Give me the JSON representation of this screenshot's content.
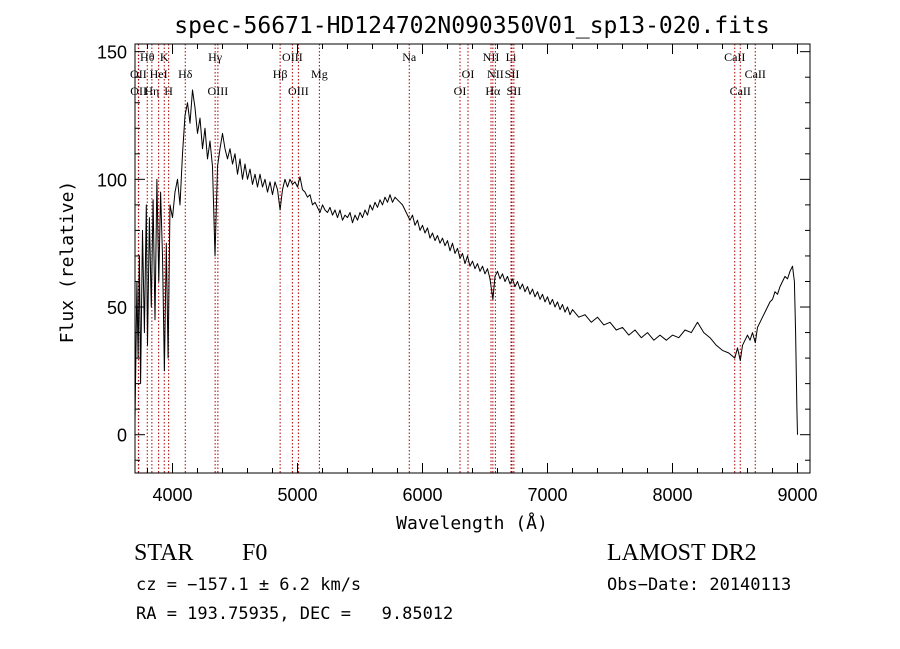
{
  "chart_data": {
    "type": "line",
    "title": "spec-56671-HD124702N090350V01_sp13-020.fits",
    "xlabel": "Wavelength (Å)",
    "ylabel": "Flux (relative)",
    "xlim": [
      3700,
      9100
    ],
    "ylim": [
      -15,
      153
    ],
    "x_ticks": [
      4000,
      5000,
      6000,
      7000,
      8000,
      9000
    ],
    "y_ticks": [
      0,
      50,
      100,
      150
    ],
    "grid": false,
    "series": [
      {
        "points": [
          [
            3700,
            5
          ],
          [
            3715,
            60
          ],
          [
            3725,
            30
          ],
          [
            3735,
            70
          ],
          [
            3745,
            20
          ],
          [
            3760,
            80
          ],
          [
            3775,
            40
          ],
          [
            3790,
            90
          ],
          [
            3800,
            35
          ],
          [
            3815,
            85
          ],
          [
            3830,
            50
          ],
          [
            3845,
            92
          ],
          [
            3860,
            45
          ],
          [
            3875,
            100
          ],
          [
            3890,
            60
          ],
          [
            3905,
            95
          ],
          [
            3920,
            70
          ],
          [
            3935,
            25
          ],
          [
            3950,
            75
          ],
          [
            3965,
            30
          ],
          [
            3980,
            90
          ],
          [
            4000,
            85
          ],
          [
            4020,
            95
          ],
          [
            4040,
            100
          ],
          [
            4060,
            90
          ],
          [
            4080,
            110
          ],
          [
            4100,
            125
          ],
          [
            4120,
            130
          ],
          [
            4140,
            122
          ],
          [
            4160,
            135
          ],
          [
            4180,
            128
          ],
          [
            4200,
            118
          ],
          [
            4220,
            124
          ],
          [
            4240,
            112
          ],
          [
            4260,
            120
          ],
          [
            4280,
            108
          ],
          [
            4300,
            115
          ],
          [
            4320,
            105
          ],
          [
            4340,
            70
          ],
          [
            4360,
            105
          ],
          [
            4380,
            112
          ],
          [
            4400,
            118
          ],
          [
            4420,
            112
          ],
          [
            4440,
            108
          ],
          [
            4460,
            112
          ],
          [
            4480,
            106
          ],
          [
            4500,
            110
          ],
          [
            4520,
            102
          ],
          [
            4540,
            108
          ],
          [
            4560,
            100
          ],
          [
            4580,
            106
          ],
          [
            4600,
            100
          ],
          [
            4620,
            104
          ],
          [
            4640,
            98
          ],
          [
            4660,
            102
          ],
          [
            4680,
            97
          ],
          [
            4700,
            102
          ],
          [
            4720,
            97
          ],
          [
            4740,
            100
          ],
          [
            4760,
            95
          ],
          [
            4780,
            99
          ],
          [
            4800,
            94
          ],
          [
            4820,
            99
          ],
          [
            4840,
            96
          ],
          [
            4861,
            88
          ],
          [
            4880,
            96
          ],
          [
            4900,
            100
          ],
          [
            4920,
            97
          ],
          [
            4940,
            100
          ],
          [
            4960,
            98
          ],
          [
            4980,
            99
          ],
          [
            5000,
            97
          ],
          [
            5020,
            101
          ],
          [
            5040,
            96
          ],
          [
            5060,
            95
          ],
          [
            5080,
            93
          ],
          [
            5100,
            94
          ],
          [
            5120,
            90
          ],
          [
            5140,
            91
          ],
          [
            5160,
            89
          ],
          [
            5180,
            87
          ],
          [
            5200,
            90
          ],
          [
            5220,
            88
          ],
          [
            5240,
            87
          ],
          [
            5260,
            89
          ],
          [
            5280,
            86
          ],
          [
            5300,
            88
          ],
          [
            5320,
            85
          ],
          [
            5340,
            88
          ],
          [
            5360,
            84
          ],
          [
            5380,
            86
          ],
          [
            5400,
            85
          ],
          [
            5420,
            87
          ],
          [
            5440,
            83
          ],
          [
            5460,
            86
          ],
          [
            5480,
            84
          ],
          [
            5500,
            87
          ],
          [
            5520,
            85
          ],
          [
            5540,
            88
          ],
          [
            5560,
            86
          ],
          [
            5580,
            90
          ],
          [
            5600,
            88
          ],
          [
            5620,
            91
          ],
          [
            5640,
            89
          ],
          [
            5660,
            92
          ],
          [
            5680,
            90
          ],
          [
            5700,
            93
          ],
          [
            5720,
            91
          ],
          [
            5740,
            94
          ],
          [
            5760,
            91
          ],
          [
            5780,
            93
          ],
          [
            5800,
            92
          ],
          [
            5820,
            91
          ],
          [
            5840,
            90
          ],
          [
            5860,
            88
          ],
          [
            5880,
            86
          ],
          [
            5900,
            84
          ],
          [
            5920,
            86
          ],
          [
            5940,
            82
          ],
          [
            5960,
            84
          ],
          [
            5980,
            80
          ],
          [
            6000,
            82
          ],
          [
            6020,
            79
          ],
          [
            6040,
            81
          ],
          [
            6060,
            77
          ],
          [
            6080,
            79
          ],
          [
            6100,
            76
          ],
          [
            6120,
            78
          ],
          [
            6140,
            75
          ],
          [
            6160,
            77
          ],
          [
            6180,
            74
          ],
          [
            6200,
            76
          ],
          [
            6220,
            72
          ],
          [
            6240,
            75
          ],
          [
            6260,
            71
          ],
          [
            6280,
            73
          ],
          [
            6300,
            69
          ],
          [
            6320,
            71
          ],
          [
            6340,
            67
          ],
          [
            6360,
            70
          ],
          [
            6380,
            66
          ],
          [
            6400,
            68
          ],
          [
            6420,
            65
          ],
          [
            6440,
            67
          ],
          [
            6460,
            64
          ],
          [
            6480,
            66
          ],
          [
            6500,
            63
          ],
          [
            6520,
            65
          ],
          [
            6540,
            61
          ],
          [
            6563,
            53
          ],
          [
            6580,
            62
          ],
          [
            6600,
            64
          ],
          [
            6620,
            61
          ],
          [
            6640,
            63
          ],
          [
            6660,
            60
          ],
          [
            6680,
            62
          ],
          [
            6700,
            59
          ],
          [
            6720,
            61
          ],
          [
            6740,
            58
          ],
          [
            6760,
            60
          ],
          [
            6780,
            57
          ],
          [
            6800,
            59
          ],
          [
            6820,
            56
          ],
          [
            6840,
            58
          ],
          [
            6860,
            55
          ],
          [
            6880,
            57
          ],
          [
            6900,
            54
          ],
          [
            6920,
            56
          ],
          [
            6940,
            53
          ],
          [
            6960,
            55
          ],
          [
            6980,
            52
          ],
          [
            7000,
            54
          ],
          [
            7020,
            51
          ],
          [
            7040,
            53
          ],
          [
            7060,
            50
          ],
          [
            7080,
            52
          ],
          [
            7100,
            49
          ],
          [
            7120,
            51
          ],
          [
            7140,
            48
          ],
          [
            7160,
            50
          ],
          [
            7180,
            47
          ],
          [
            7200,
            49
          ],
          [
            7250,
            46
          ],
          [
            7300,
            47
          ],
          [
            7350,
            44
          ],
          [
            7400,
            46
          ],
          [
            7450,
            43
          ],
          [
            7500,
            44
          ],
          [
            7550,
            41
          ],
          [
            7600,
            42
          ],
          [
            7650,
            39
          ],
          [
            7700,
            41
          ],
          [
            7750,
            38
          ],
          [
            7800,
            40
          ],
          [
            7850,
            37
          ],
          [
            7900,
            39
          ],
          [
            7950,
            37
          ],
          [
            8000,
            39
          ],
          [
            8050,
            38
          ],
          [
            8100,
            41
          ],
          [
            8150,
            40
          ],
          [
            8200,
            44
          ],
          [
            8250,
            40
          ],
          [
            8300,
            38
          ],
          [
            8350,
            35
          ],
          [
            8400,
            33
          ],
          [
            8450,
            32
          ],
          [
            8498,
            30
          ],
          [
            8520,
            34
          ],
          [
            8542,
            29
          ],
          [
            8560,
            35
          ],
          [
            8580,
            37
          ],
          [
            8600,
            39
          ],
          [
            8620,
            37
          ],
          [
            8640,
            40
          ],
          [
            8662,
            36
          ],
          [
            8680,
            42
          ],
          [
            8700,
            44
          ],
          [
            8720,
            46
          ],
          [
            8740,
            48
          ],
          [
            8760,
            50
          ],
          [
            8780,
            52
          ],
          [
            8800,
            53
          ],
          [
            8820,
            56
          ],
          [
            8840,
            55
          ],
          [
            8860,
            58
          ],
          [
            8880,
            60
          ],
          [
            8900,
            62
          ],
          [
            8920,
            61
          ],
          [
            8940,
            64
          ],
          [
            8960,
            66
          ],
          [
            8975,
            60
          ],
          [
            8985,
            40
          ],
          [
            8995,
            10
          ],
          [
            9000,
            0
          ]
        ]
      }
    ],
    "lines": [
      {
        "label": "OII",
        "x": 3727,
        "row": 2
      },
      {
        "label": "OII",
        "x": 3729,
        "row": 3
      },
      {
        "label": "Hθ",
        "x": 3798,
        "row": 1
      },
      {
        "label": "Hη",
        "x": 3835,
        "row": 3
      },
      {
        "label": "HeI",
        "x": 3889,
        "row": 2
      },
      {
        "label": "K",
        "x": 3934,
        "row": 1
      },
      {
        "label": "H",
        "x": 3969,
        "row": 3
      },
      {
        "label": "Hδ",
        "x": 4102,
        "row": 2
      },
      {
        "label": "Hγ",
        "x": 4341,
        "row": 1
      },
      {
        "label": "OIII",
        "x": 4363,
        "row": 3
      },
      {
        "label": "Hβ",
        "x": 4861,
        "row": 2
      },
      {
        "label": "OIII",
        "x": 4959,
        "row": 1
      },
      {
        "label": "OIII",
        "x": 5007,
        "row": 3
      },
      {
        "label": "Mg",
        "x": 5175,
        "row": 2
      },
      {
        "label": "Na",
        "x": 5894,
        "row": 1
      },
      {
        "label": "OI",
        "x": 6300,
        "row": 3
      },
      {
        "label": "OI",
        "x": 6364,
        "row": 2
      },
      {
        "label": "NII",
        "x": 6548,
        "row": 1
      },
      {
        "label": "Hα",
        "x": 6563,
        "row": 3
      },
      {
        "label": "NII",
        "x": 6583,
        "row": 2
      },
      {
        "label": "Li",
        "x": 6708,
        "row": 1
      },
      {
        "label": "SII",
        "x": 6716,
        "row": 2
      },
      {
        "label": "SII",
        "x": 6731,
        "row": 3
      },
      {
        "label": "CaII",
        "x": 8498,
        "row": 1
      },
      {
        "label": "CaII",
        "x": 8542,
        "row": 3
      },
      {
        "label": "CaII",
        "x": 8662,
        "row": 2
      }
    ]
  },
  "info": {
    "class_label": "STAR",
    "subclass": "F0",
    "survey": "LAMOST DR2",
    "cz": "cz = −157.1 ± 6.2 km/s",
    "obs_date": "Obs−Date: 20140113",
    "radec": "RA = 193.75935, DEC =   9.85012"
  },
  "colors": {
    "spectrum": "#000000",
    "line_markers": "#b00000",
    "axes": "#000000"
  }
}
